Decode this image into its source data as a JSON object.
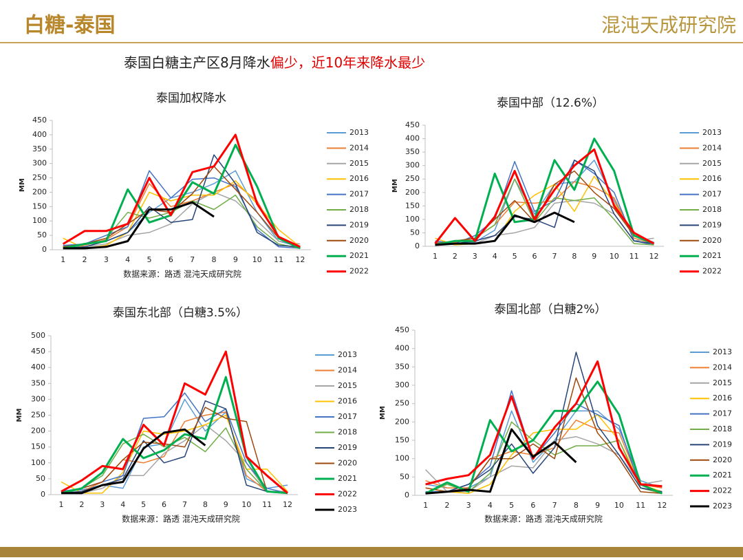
{
  "header": {
    "title": "白糖-泰国",
    "logo": "混沌天成研究院",
    "subtitle": [
      "泰国白糖主产区8月降水",
      "偏少，近10年来降水最少"
    ]
  },
  "chart_data": [
    {
      "type": "line",
      "title": "泰国加权降水",
      "source": "数据来源：路透 混沌天成研究院",
      "y_label": "MM",
      "categories": [
        1,
        2,
        3,
        4,
        5,
        6,
        7,
        8,
        9,
        10,
        11,
        12
      ],
      "ylim": [
        0,
        450
      ],
      "yticks": [
        0,
        50,
        100,
        150,
        200,
        250,
        300,
        350,
        400,
        450
      ],
      "series": [
        {
          "name": "2013",
          "color": "#5b9bd5",
          "values": [
            10,
            20,
            30,
            60,
            130,
            180,
            200,
            230,
            275,
            130,
            30,
            10
          ]
        },
        {
          "name": "2014",
          "color": "#ed7d31",
          "values": [
            10,
            15,
            35,
            80,
            230,
            150,
            170,
            200,
            230,
            170,
            40,
            10
          ]
        },
        {
          "name": "2015",
          "color": "#a5a5a5",
          "values": [
            15,
            10,
            20,
            50,
            60,
            90,
            160,
            200,
            170,
            100,
            30,
            20
          ]
        },
        {
          "name": "2016",
          "color": "#ffc000",
          "values": [
            40,
            5,
            15,
            60,
            200,
            170,
            190,
            190,
            240,
            160,
            70,
            10
          ]
        },
        {
          "name": "2017",
          "color": "#4472c4",
          "values": [
            15,
            20,
            50,
            80,
            275,
            180,
            245,
            250,
            220,
            70,
            10,
            5
          ]
        },
        {
          "name": "2018",
          "color": "#70ad47",
          "values": [
            5,
            20,
            40,
            130,
            110,
            130,
            170,
            140,
            190,
            80,
            20,
            5
          ]
        },
        {
          "name": "2019",
          "color": "#264478",
          "values": [
            5,
            10,
            30,
            60,
            150,
            95,
            105,
            330,
            230,
            60,
            15,
            10
          ]
        },
        {
          "name": "2020",
          "color": "#9e480e",
          "values": [
            10,
            20,
            40,
            90,
            140,
            130,
            195,
            290,
            210,
            130,
            40,
            5
          ]
        },
        {
          "name": "2021",
          "color": "#00b050",
          "values": [
            5,
            20,
            30,
            210,
            95,
            120,
            235,
            195,
            365,
            220,
            40,
            5
          ]
        },
        {
          "name": "2022",
          "color": "#ff0000",
          "values": [
            20,
            65,
            65,
            90,
            250,
            120,
            270,
            290,
            400,
            160,
            45,
            10
          ]
        },
        {
          "color": "#000000",
          "values": [
            5,
            5,
            10,
            30,
            140,
            140,
            165,
            115,
            null,
            null,
            null,
            null
          ]
        }
      ]
    },
    {
      "type": "line",
      "title": "泰国中部（12.6%）",
      "y_label": "MM",
      "categories": [
        1,
        2,
        3,
        4,
        5,
        6,
        7,
        8,
        9,
        10,
        11,
        12
      ],
      "ylim": [
        0,
        450
      ],
      "yticks": [
        0,
        50,
        100,
        150,
        200,
        250,
        300,
        350,
        400,
        450
      ],
      "series": [
        {
          "name": "2013",
          "color": "#5b9bd5",
          "values": [
            15,
            10,
            15,
            60,
            250,
            120,
            230,
            240,
            320,
            170,
            40,
            15
          ]
        },
        {
          "name": "2014",
          "color": "#ed7d31",
          "values": [
            10,
            15,
            30,
            80,
            165,
            160,
            170,
            240,
            220,
            180,
            30,
            10
          ]
        },
        {
          "name": "2015",
          "color": "#a5a5a5",
          "values": [
            20,
            5,
            10,
            40,
            50,
            70,
            160,
            170,
            160,
            120,
            20,
            30
          ]
        },
        {
          "name": "2016",
          "color": "#ffc000",
          "values": [
            30,
            5,
            10,
            20,
            130,
            190,
            230,
            130,
            260,
            160,
            50,
            10
          ]
        },
        {
          "name": "2017",
          "color": "#4472c4",
          "values": [
            20,
            10,
            40,
            100,
            315,
            130,
            170,
            320,
            270,
            200,
            20,
            5
          ]
        },
        {
          "name": "2018",
          "color": "#70ad47",
          "values": [
            10,
            20,
            30,
            80,
            250,
            90,
            180,
            170,
            180,
            100,
            10,
            5
          ]
        },
        {
          "name": "2019",
          "color": "#264478",
          "values": [
            5,
            10,
            20,
            40,
            110,
            100,
            70,
            320,
            280,
            120,
            20,
            10
          ]
        },
        {
          "name": "2020",
          "color": "#9e480e",
          "values": [
            10,
            20,
            30,
            100,
            170,
            90,
            230,
            280,
            200,
            140,
            40,
            10
          ]
        },
        {
          "name": "2021",
          "color": "#00b050",
          "values": [
            5,
            20,
            20,
            270,
            90,
            100,
            320,
            210,
            400,
            280,
            40,
            10
          ]
        },
        {
          "name": "2022",
          "color": "#ff0000",
          "values": [
            10,
            105,
            20,
            110,
            280,
            100,
            210,
            300,
            360,
            150,
            50,
            10
          ]
        },
        {
          "color": "#000000",
          "values": [
            5,
            10,
            10,
            20,
            115,
            90,
            125,
            90,
            null,
            null,
            null,
            null
          ]
        }
      ]
    },
    {
      "type": "line",
      "title": "泰国东北部（白糖3.5%）",
      "source": "数据来源：路透 混沌天成研究院",
      "y_label": "MM",
      "categories": [
        1,
        2,
        3,
        4,
        5,
        6,
        7,
        8,
        9,
        10,
        11,
        12
      ],
      "ylim": [
        0,
        500
      ],
      "yticks": [
        0,
        50,
        100,
        150,
        200,
        250,
        300,
        350,
        400,
        450,
        500
      ],
      "series": [
        {
          "name": "2013",
          "color": "#5b9bd5",
          "values": [
            10,
            15,
            30,
            20,
            150,
            160,
            300,
            200,
            260,
            50,
            20,
            30
          ]
        },
        {
          "name": "2014",
          "color": "#ed7d31",
          "values": [
            5,
            10,
            40,
            110,
            100,
            120,
            230,
            250,
            260,
            60,
            10,
            10
          ]
        },
        {
          "name": "2015",
          "color": "#a5a5a5",
          "values": [
            10,
            5,
            20,
            60,
            60,
            130,
            170,
            220,
            170,
            100,
            10,
            5
          ]
        },
        {
          "name": "2016",
          "color": "#ffc000",
          "values": [
            40,
            5,
            5,
            70,
            200,
            190,
            200,
            220,
            250,
            80,
            80,
            10
          ]
        },
        {
          "name": "2017",
          "color": "#4472c4",
          "values": [
            10,
            20,
            40,
            60,
            240,
            245,
            320,
            230,
            270,
            100,
            20,
            5
          ]
        },
        {
          "name": "2018",
          "color": "#70ad47",
          "values": [
            5,
            20,
            60,
            160,
            190,
            150,
            180,
            135,
            210,
            80,
            10,
            5
          ]
        },
        {
          "name": "2019",
          "color": "#264478",
          "values": [
            5,
            10,
            30,
            50,
            170,
            100,
            120,
            295,
            270,
            30,
            10,
            5
          ]
        },
        {
          "name": "2020",
          "color": "#9e480e",
          "values": [
            5,
            20,
            40,
            110,
            165,
            160,
            150,
            275,
            240,
            230,
            10,
            5
          ]
        },
        {
          "name": "2021",
          "color": "#00b050",
          "values": [
            5,
            20,
            70,
            175,
            115,
            140,
            190,
            175,
            370,
            120,
            10,
            5
          ]
        },
        {
          "name": "2022",
          "color": "#ff0000",
          "values": [
            10,
            45,
            90,
            80,
            220,
            155,
            350,
            315,
            450,
            120,
            60,
            5
          ]
        },
        {
          "name": "2023",
          "color": "#000000",
          "values": [
            5,
            5,
            30,
            40,
            145,
            195,
            205,
            155,
            null,
            null,
            null,
            null
          ]
        }
      ]
    },
    {
      "type": "line",
      "title": "泰国北部（白糖2%）",
      "source": "数据来源：路透 混沌天成研究院",
      "y_label": "MM",
      "categories": [
        1,
        2,
        3,
        4,
        5,
        6,
        7,
        8,
        9,
        10,
        11,
        12
      ],
      "ylim": [
        0,
        450
      ],
      "yticks": [
        0,
        50,
        100,
        150,
        200,
        250,
        300,
        350,
        400,
        450
      ],
      "series": [
        {
          "name": "2013",
          "color": "#5b9bd5",
          "values": [
            30,
            20,
            20,
            50,
            230,
            90,
            150,
            230,
            230,
            180,
            40,
            20
          ]
        },
        {
          "name": "2014",
          "color": "#ed7d31",
          "values": [
            40,
            20,
            20,
            100,
            120,
            110,
            130,
            205,
            180,
            170,
            30,
            20
          ]
        },
        {
          "name": "2015",
          "color": "#a5a5a5",
          "values": [
            70,
            10,
            10,
            50,
            80,
            75,
            150,
            160,
            140,
            110,
            30,
            40
          ]
        },
        {
          "name": "2016",
          "color": "#ffc000",
          "values": [
            20,
            10,
            5,
            30,
            110,
            170,
            180,
            180,
            220,
            150,
            30,
            10
          ]
        },
        {
          "name": "2017",
          "color": "#4472c4",
          "values": [
            10,
            10,
            30,
            80,
            285,
            100,
            170,
            250,
            220,
            190,
            20,
            10
          ]
        },
        {
          "name": "2018",
          "color": "#70ad47",
          "values": [
            5,
            30,
            10,
            60,
            200,
            150,
            110,
            135,
            135,
            150,
            20,
            5
          ]
        },
        {
          "name": "2019",
          "color": "#264478",
          "values": [
            5,
            10,
            30,
            70,
            140,
            60,
            130,
            390,
            190,
            110,
            20,
            10
          ]
        },
        {
          "name": "2020",
          "color": "#9e480e",
          "values": [
            20,
            10,
            20,
            100,
            100,
            140,
            100,
            320,
            170,
            100,
            10,
            5
          ]
        },
        {
          "name": "2021",
          "color": "#00b050",
          "values": [
            5,
            35,
            10,
            205,
            120,
            150,
            230,
            230,
            310,
            220,
            30,
            5
          ]
        },
        {
          "name": "2022",
          "color": "#ff0000",
          "values": [
            30,
            45,
            55,
            110,
            270,
            100,
            185,
            250,
            365,
            130,
            30,
            25
          ]
        },
        {
          "name": "2023",
          "color": "#000000",
          "values": [
            5,
            10,
            15,
            10,
            180,
            105,
            145,
            90,
            null,
            null,
            null,
            null
          ]
        }
      ]
    }
  ]
}
